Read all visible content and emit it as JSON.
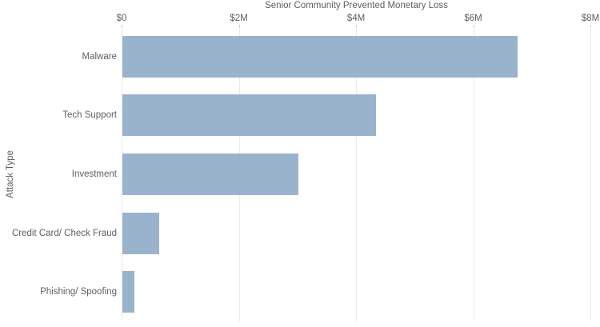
{
  "chart_data": {
    "type": "bar",
    "orientation": "horizontal",
    "title": "Senior Community Prevented Monetary Loss",
    "xlabel": "",
    "ylabel": "Attack Type",
    "categories": [
      "Malware",
      "Tech Support",
      "Investment",
      "Credit Card/ Check Fraud",
      "Phishing/ Spoofing"
    ],
    "values_millions_usd": [
      6.75,
      4.33,
      3.0,
      0.63,
      0.21
    ],
    "units": "USD (millions)",
    "xlim": [
      0,
      8
    ],
    "x_tick_values": [
      0,
      2,
      4,
      6,
      8
    ],
    "x_tick_labels": [
      "$0",
      "$2M",
      "$4M",
      "$6M",
      "$8M"
    ],
    "x_axis_position": "top",
    "grid": "vertical-only",
    "legend": "none"
  },
  "colors": {
    "bar": "#9AB3CC",
    "gridline": "#EBEBEB",
    "tick": "#C9CDD1",
    "text": "#5B6066",
    "background": "#FFFFFF"
  }
}
